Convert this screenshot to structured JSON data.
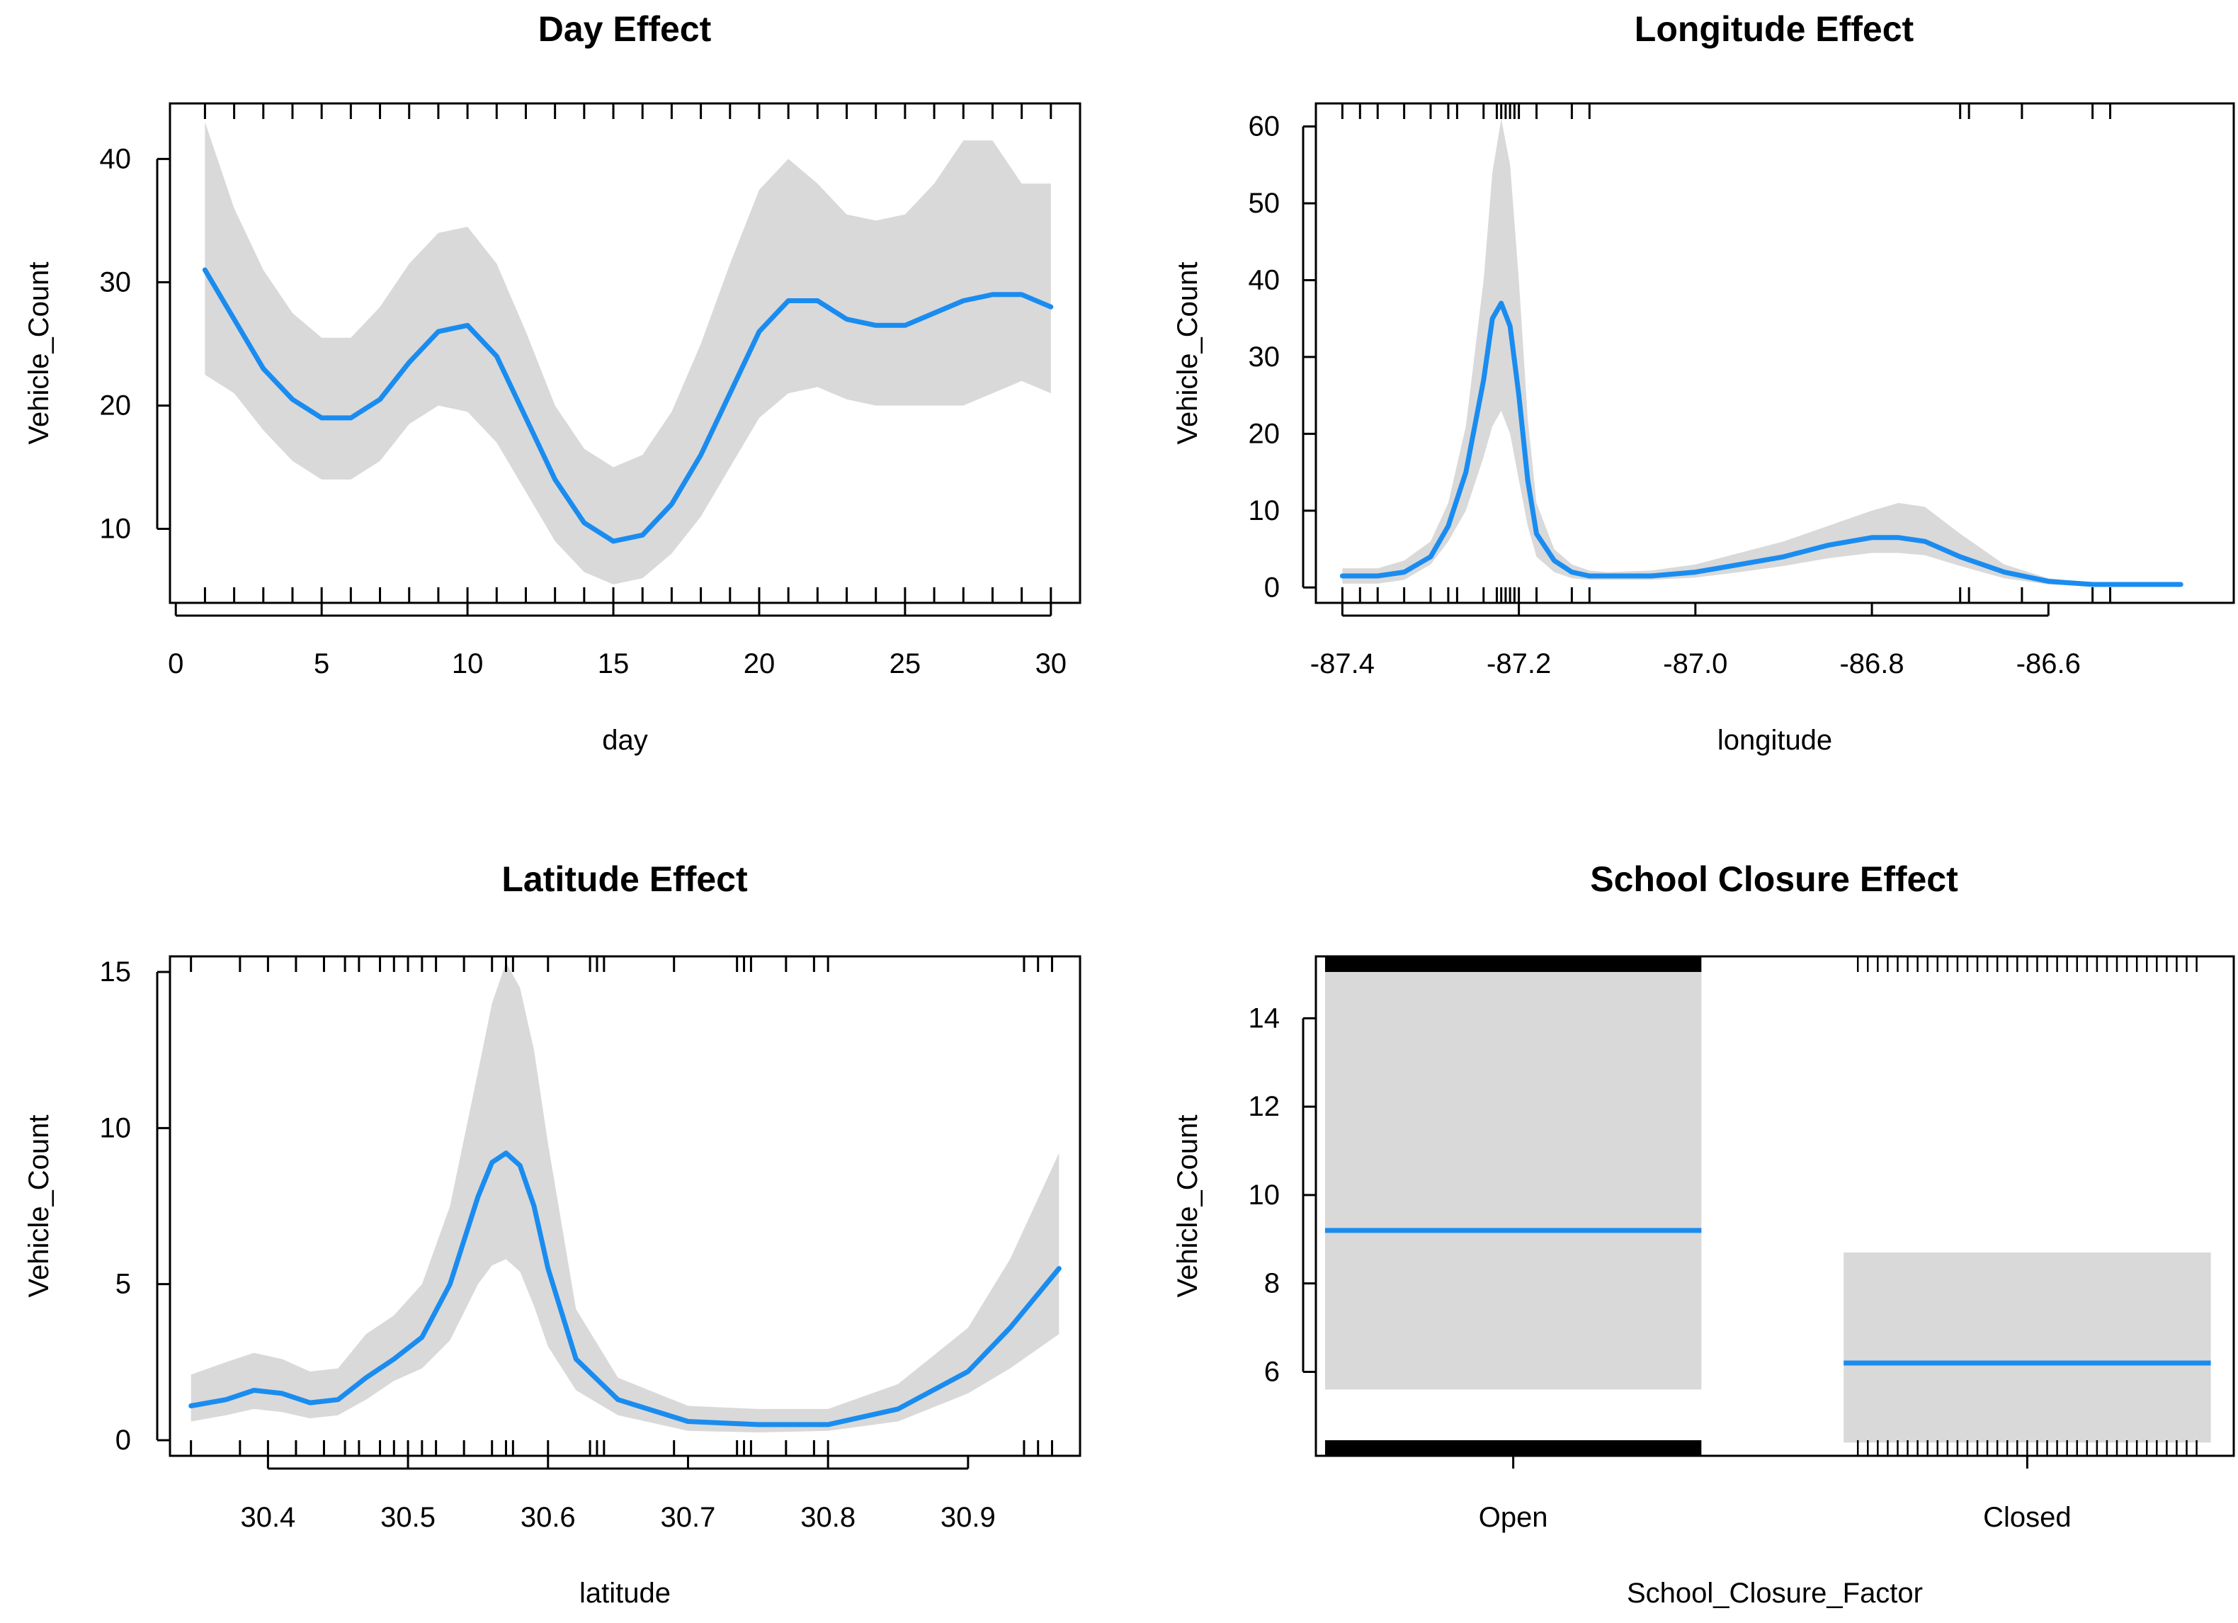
{
  "chart_data": [
    {
      "type": "line",
      "title": "Day Effect",
      "xlabel": "day",
      "ylabel": "Vehicle_Count",
      "xlim": [
        -0.2,
        31
      ],
      "ylim": [
        4,
        44.5
      ],
      "xticks": [
        0,
        5,
        10,
        15,
        20,
        25,
        30
      ],
      "xtick_labels": [
        "0",
        "5",
        "10",
        "15",
        "20",
        "25",
        "30"
      ],
      "yticks": [
        10,
        20,
        30,
        40
      ],
      "ytick_labels": [
        "10",
        "20",
        "30",
        "40"
      ],
      "series": [
        {
          "name": "fit",
          "x": [
            1,
            2,
            3,
            4,
            5,
            6,
            7,
            8,
            9,
            10,
            11,
            12,
            13,
            14,
            15,
            16,
            17,
            18,
            19,
            20,
            21,
            22,
            23,
            24,
            25,
            26,
            27,
            28,
            29,
            30
          ],
          "y": [
            31,
            27,
            23,
            20.5,
            19,
            19,
            20.5,
            23.5,
            26,
            26.5,
            24,
            19,
            14,
            10.5,
            9,
            9.5,
            12,
            16,
            21,
            26,
            28.5,
            28.5,
            27,
            26.5,
            26.5,
            27.5,
            28.5,
            29,
            29,
            28
          ],
          "lower": [
            22.5,
            21,
            18,
            15.5,
            14,
            14,
            15.5,
            18.5,
            20,
            19.5,
            17,
            13,
            9,
            6.5,
            5.5,
            6,
            8,
            11,
            15,
            19,
            21,
            21.5,
            20.5,
            20,
            20,
            20,
            20,
            21,
            22,
            21
          ],
          "upper": [
            43,
            36,
            31,
            27.5,
            25.5,
            25.5,
            28,
            31.5,
            34,
            34.5,
            31.5,
            26,
            20,
            16.5,
            15,
            16,
            19.5,
            25,
            31.5,
            37.5,
            40,
            38,
            35.5,
            35,
            35.5,
            38,
            41.5,
            41.5,
            38,
            38
          ]
        }
      ],
      "rug_x": [
        1,
        2,
        3,
        4,
        5,
        6,
        7,
        8,
        9,
        10,
        11,
        12,
        13,
        14,
        15,
        16,
        17,
        18,
        19,
        20,
        21,
        22,
        23,
        24,
        25,
        26,
        27,
        28,
        29,
        30
      ]
    },
    {
      "type": "line",
      "title": "Longitude Effect",
      "xlabel": "longitude",
      "ylabel": "Vehicle_Count",
      "xlim": [
        -87.43,
        -86.39
      ],
      "ylim": [
        -2,
        63
      ],
      "xticks": [
        -87.4,
        -87.2,
        -87.0,
        -86.8,
        -86.6
      ],
      "xtick_labels": [
        "-87.4",
        "-87.2",
        "-87.0",
        "-86.8",
        "-86.6"
      ],
      "yticks": [
        0,
        10,
        20,
        30,
        40,
        50,
        60
      ],
      "ytick_labels": [
        "0",
        "10",
        "20",
        "30",
        "40",
        "50",
        "60"
      ],
      "series": [
        {
          "name": "fit",
          "x": [
            -87.4,
            -87.36,
            -87.33,
            -87.3,
            -87.28,
            -87.26,
            -87.24,
            -87.23,
            -87.22,
            -87.21,
            -87.2,
            -87.19,
            -87.18,
            -87.16,
            -87.14,
            -87.12,
            -87.1,
            -87.05,
            -87.0,
            -86.95,
            -86.9,
            -86.85,
            -86.8,
            -86.77,
            -86.74,
            -86.7,
            -86.65,
            -86.6,
            -86.55,
            -86.5,
            -86.45
          ],
          "y": [
            1.5,
            1.5,
            2,
            4,
            8,
            15,
            27,
            35,
            37,
            34,
            25,
            14,
            7,
            3.5,
            2,
            1.5,
            1.5,
            1.5,
            2,
            3,
            4,
            5.5,
            6.5,
            6.5,
            6,
            4,
            2,
            0.8,
            0.4,
            0.4,
            0.4
          ],
          "lower": [
            0.5,
            0.5,
            1,
            3,
            6,
            10,
            17,
            21,
            23,
            20,
            14,
            8,
            4,
            2,
            1.2,
            1,
            1,
            1,
            1.3,
            2,
            2.8,
            3.8,
            4.5,
            4.5,
            4.2,
            2.8,
            1.2,
            0.4,
            0.2,
            0.2,
            0.2
          ],
          "upper": [
            2.5,
            2.5,
            3.5,
            6,
            11,
            21,
            40,
            54,
            61,
            55,
            40,
            22,
            11,
            5,
            3,
            2.2,
            2,
            2.2,
            3,
            4.5,
            6,
            8,
            10,
            11,
            10.5,
            7,
            3,
            1.2,
            0.6,
            0.6,
            0.6
          ]
        }
      ],
      "rug_x": [
        -87.4,
        -87.38,
        -87.36,
        -87.33,
        -87.3,
        -87.28,
        -87.27,
        -87.24,
        -87.225,
        -87.22,
        -87.215,
        -87.21,
        -87.205,
        -87.2,
        -87.18,
        -87.14,
        -87.12,
        -86.7,
        -86.69,
        -86.63,
        -86.55,
        -86.53
      ]
    },
    {
      "type": "line",
      "title": "Latitude Effect",
      "xlabel": "latitude",
      "ylabel": "Vehicle_Count",
      "xlim": [
        30.33,
        30.98
      ],
      "ylim": [
        -0.5,
        15.5
      ],
      "xticks": [
        30.4,
        30.5,
        30.6,
        30.7,
        30.8,
        30.9
      ],
      "xtick_labels": [
        "30.4",
        "30.5",
        "30.6",
        "30.7",
        "30.8",
        "30.9"
      ],
      "yticks": [
        0,
        5,
        10,
        15
      ],
      "ytick_labels": [
        "0",
        "5",
        "10",
        "15"
      ],
      "series": [
        {
          "name": "fit",
          "x": [
            30.345,
            30.37,
            30.39,
            30.41,
            30.43,
            30.45,
            30.47,
            30.49,
            30.51,
            30.53,
            30.55,
            30.56,
            30.57,
            30.58,
            30.59,
            30.6,
            30.62,
            30.65,
            30.7,
            30.75,
            30.8,
            30.85,
            30.9,
            30.93,
            30.965
          ],
          "y": [
            1.1,
            1.3,
            1.6,
            1.5,
            1.2,
            1.3,
            2.0,
            2.6,
            3.3,
            5.0,
            7.8,
            8.9,
            9.2,
            8.8,
            7.5,
            5.5,
            2.6,
            1.3,
            0.6,
            0.5,
            0.5,
            1.0,
            2.2,
            3.6,
            5.5
          ],
          "lower": [
            0.6,
            0.8,
            1.0,
            0.9,
            0.7,
            0.8,
            1.3,
            1.9,
            2.3,
            3.2,
            5.0,
            5.6,
            5.8,
            5.4,
            4.3,
            3.0,
            1.6,
            0.8,
            0.3,
            0.25,
            0.3,
            0.6,
            1.5,
            2.3,
            3.4
          ],
          "upper": [
            2.1,
            2.5,
            2.8,
            2.6,
            2.2,
            2.3,
            3.4,
            4.0,
            5.0,
            7.5,
            11.8,
            14.0,
            15.3,
            14.5,
            12.5,
            9.5,
            4.2,
            2.0,
            1.1,
            1.0,
            1.0,
            1.8,
            3.6,
            5.8,
            9.2
          ]
        }
      ],
      "rug_x": [
        30.345,
        30.38,
        30.4,
        30.42,
        30.44,
        30.455,
        30.465,
        30.48,
        30.49,
        30.5,
        30.51,
        30.52,
        30.54,
        30.56,
        30.57,
        30.575,
        30.6,
        30.63,
        30.635,
        30.64,
        30.69,
        30.735,
        30.74,
        30.745,
        30.77,
        30.79,
        30.8,
        30.94,
        30.95,
        30.96
      ]
    },
    {
      "type": "bar",
      "title": "School Closure Effect",
      "xlabel": "School_Closure_Factor",
      "ylabel": "Vehicle_Count",
      "ylim": [
        4.1,
        15.4
      ],
      "categories": [
        "Open",
        "Closed"
      ],
      "yticks": [
        6,
        8,
        10,
        12,
        14
      ],
      "ytick_labels": [
        "6",
        "8",
        "10",
        "12",
        "14"
      ],
      "values": [
        9.2,
        6.2
      ],
      "lower": [
        5.6,
        4.4
      ],
      "upper": [
        15.1,
        8.7
      ],
      "rug_density": [
        "dense",
        "sparse"
      ]
    }
  ]
}
